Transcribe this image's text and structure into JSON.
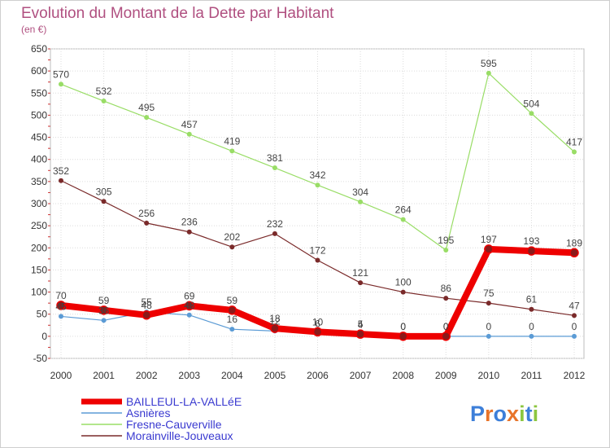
{
  "chart_data": {
    "type": "line",
    "title": "Evolution du Montant de la Dette par Habitant",
    "subtitle": "(en €)",
    "x": [
      "2000",
      "2001",
      "2002",
      "2003",
      "2004",
      "2005",
      "2006",
      "2007",
      "2008",
      "2009",
      "2010",
      "2011",
      "2012"
    ],
    "ylim": [
      -50,
      650
    ],
    "yticks": [
      -50,
      0,
      50,
      100,
      150,
      200,
      250,
      300,
      350,
      400,
      450,
      500,
      550,
      600,
      650
    ],
    "grid": true,
    "legend_position": "bottom-left",
    "series": [
      {
        "name": "BAILLEUL-LA-VALLéE",
        "color": "#ee0000",
        "values": [
          70,
          59,
          48,
          69,
          59,
          18,
          10,
          5,
          0,
          0,
          197,
          193,
          189
        ]
      },
      {
        "name": "Asnières",
        "color": "#5b9bd5",
        "values": [
          45,
          36,
          55,
          48,
          16,
          12,
          6,
          4,
          0,
          0,
          0,
          0,
          0
        ]
      },
      {
        "name": "Fresne-Cauverville",
        "color": "#99dd66",
        "values": [
          570,
          532,
          495,
          457,
          419,
          381,
          342,
          304,
          264,
          195,
          595,
          504,
          417
        ]
      },
      {
        "name": "Morainville-Jouveaux",
        "color": "#7a2a2a",
        "values": [
          352,
          305,
          256,
          236,
          202,
          232,
          172,
          121,
          100,
          86,
          75,
          61,
          47
        ]
      }
    ]
  },
  "brand": {
    "logo_text": "Proxiti"
  }
}
